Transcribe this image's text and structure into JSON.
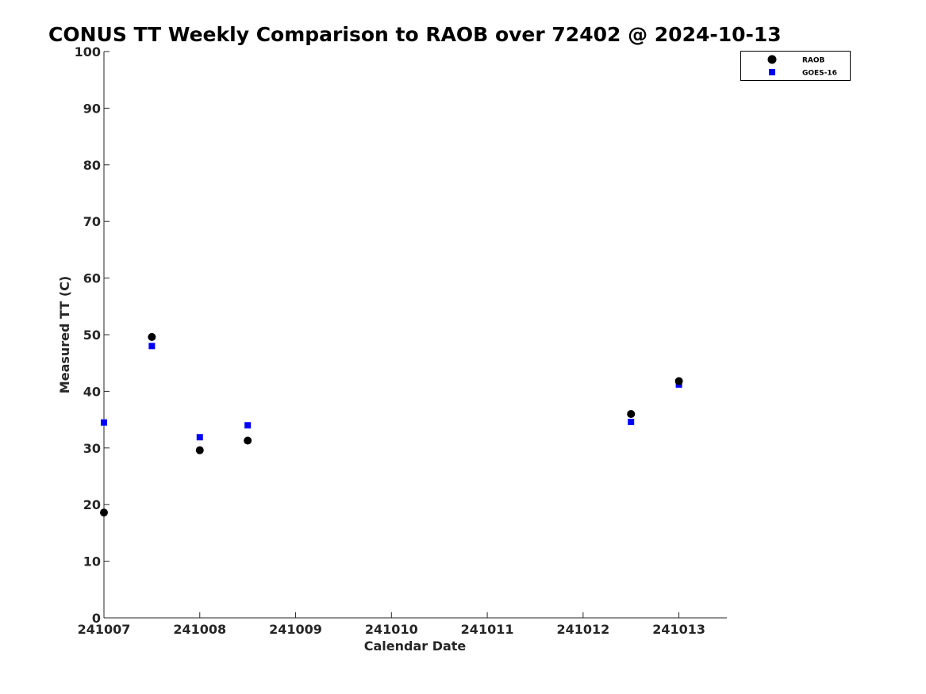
{
  "chart_data": {
    "type": "scatter",
    "title": "CONUS TT Weekly Comparison to RAOB over 72402 @ 2024-10-13",
    "xlabel": "Calendar Date",
    "ylabel": "Measured TT (C)",
    "x_ticks": [
      "241007",
      "241008",
      "241009",
      "241010",
      "241011",
      "241012",
      "241013"
    ],
    "xlim": [
      "241007",
      "241013 12:00"
    ],
    "y_ticks": [
      0,
      10,
      20,
      30,
      40,
      50,
      60,
      70,
      80,
      90,
      100
    ],
    "ylim": [
      0,
      100
    ],
    "grid": false,
    "legend_position": "top-right",
    "series": [
      {
        "name": "RAOB",
        "marker": "circle",
        "color": "#000000",
        "points": [
          {
            "x": "241007 00:00",
            "y": 18.6
          },
          {
            "x": "241007 12:00",
            "y": 49.6
          },
          {
            "x": "241008 00:00",
            "y": 29.6
          },
          {
            "x": "241008 12:00",
            "y": 31.3
          },
          {
            "x": "241012 12:00",
            "y": 36.0
          },
          {
            "x": "241013 00:00",
            "y": 41.8
          }
        ]
      },
      {
        "name": "GOES-16",
        "marker": "square",
        "color": "#0000ff",
        "points": [
          {
            "x": "241007 00:00",
            "y": 34.5
          },
          {
            "x": "241007 12:00",
            "y": 48.0
          },
          {
            "x": "241008 00:00",
            "y": 31.9
          },
          {
            "x": "241008 12:00",
            "y": 34.0
          },
          {
            "x": "241012 12:00",
            "y": 34.6
          },
          {
            "x": "241013 00:00",
            "y": 41.2
          }
        ]
      }
    ]
  }
}
